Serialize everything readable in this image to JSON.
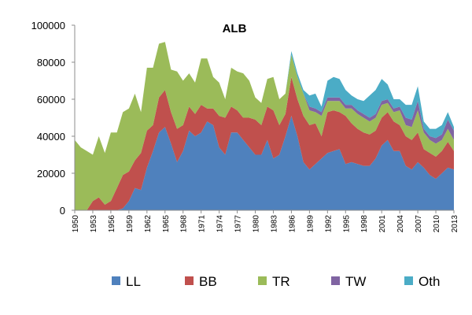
{
  "chart_data": {
    "type": "area",
    "stacked": true,
    "title": "ALB",
    "xlabel": "",
    "ylabel": "",
    "ylim": [
      0,
      100000
    ],
    "yticks": [
      0,
      20000,
      40000,
      60000,
      80000,
      100000
    ],
    "ytick_labels": [
      "0",
      "20000",
      "40000",
      "60000",
      "80000",
      "100000"
    ],
    "xticks": [
      1950,
      1953,
      1956,
      1959,
      1962,
      1965,
      1968,
      1971,
      1974,
      1977,
      1980,
      1983,
      1986,
      1989,
      1992,
      1995,
      1998,
      2001,
      2004,
      2007,
      2010,
      2013
    ],
    "xtick_labels": [
      "1950",
      "1953",
      "1956",
      "1959",
      "1962",
      "1965",
      "1968",
      "1971",
      "1974",
      "1977",
      "1980",
      "1983",
      "1986",
      "1989",
      "1992",
      "1995",
      "1998",
      "2001",
      "2004",
      "2007",
      "2010",
      "2013"
    ],
    "xlim": [
      1950,
      2013
    ],
    "grid": false,
    "legend_position": "bottom",
    "x": [
      1950,
      1951,
      1952,
      1953,
      1954,
      1955,
      1956,
      1957,
      1958,
      1959,
      1960,
      1961,
      1962,
      1963,
      1964,
      1965,
      1966,
      1967,
      1968,
      1969,
      1970,
      1971,
      1972,
      1973,
      1974,
      1975,
      1976,
      1977,
      1978,
      1979,
      1980,
      1981,
      1982,
      1983,
      1984,
      1985,
      1986,
      1987,
      1988,
      1989,
      1990,
      1991,
      1992,
      1993,
      1994,
      1995,
      1996,
      1997,
      1998,
      1999,
      2000,
      2001,
      2002,
      2003,
      2004,
      2005,
      2006,
      2007,
      2008,
      2009,
      2010,
      2011,
      2012,
      2013
    ],
    "series": [
      {
        "name": "LL",
        "color": "#4f81bd",
        "values": [
          0,
          0,
          0,
          0,
          0,
          0,
          0,
          0,
          1000,
          5000,
          12000,
          11000,
          23000,
          32000,
          42000,
          45000,
          36000,
          26000,
          32000,
          43000,
          40000,
          42000,
          48000,
          46000,
          34000,
          30000,
          42000,
          42000,
          38000,
          34000,
          30000,
          30000,
          38000,
          28000,
          30000,
          40000,
          51000,
          40000,
          26000,
          22000,
          25000,
          28000,
          31000,
          32000,
          33000,
          25000,
          26000,
          25000,
          24000,
          24000,
          28000,
          35000,
          38000,
          32000,
          32000,
          24000,
          22000,
          26000,
          23000,
          19000,
          17000,
          20000,
          23000,
          22000
        ]
      },
      {
        "name": "BB",
        "color": "#c0504d",
        "values": [
          0,
          0,
          0,
          5000,
          7000,
          3000,
          5000,
          12000,
          18000,
          16000,
          15000,
          20000,
          20000,
          14000,
          19000,
          20000,
          17000,
          18000,
          14000,
          13000,
          12000,
          15000,
          7000,
          9000,
          17000,
          20000,
          14000,
          12000,
          12000,
          16000,
          19000,
          16000,
          18000,
          26000,
          16000,
          12000,
          21000,
          20000,
          25000,
          24000,
          22000,
          12000,
          22000,
          22000,
          20000,
          26000,
          21000,
          19000,
          18000,
          17000,
          15000,
          15000,
          15000,
          16000,
          14000,
          16000,
          16000,
          16000,
          10000,
          12000,
          12000,
          12000,
          14000,
          10000
        ]
      },
      {
        "name": "TR",
        "color": "#9bbb59",
        "values": [
          38000,
          34000,
          32000,
          25000,
          33000,
          28000,
          37000,
          30000,
          34000,
          34000,
          36000,
          22000,
          34000,
          31000,
          29000,
          26000,
          23000,
          31000,
          24000,
          18000,
          17000,
          25000,
          27000,
          17000,
          18000,
          10000,
          21000,
          21000,
          24000,
          20000,
          12000,
          12000,
          15000,
          18000,
          14000,
          11000,
          12000,
          12000,
          12000,
          8000,
          6000,
          11000,
          6000,
          5000,
          6000,
          4000,
          8000,
          8000,
          8000,
          7000,
          7000,
          7000,
          5000,
          5000,
          8000,
          6000,
          7000,
          12000,
          9000,
          7000,
          7000,
          6000,
          7000,
          6000
        ]
      },
      {
        "name": "TW",
        "color": "#8064a2",
        "values": [
          0,
          0,
          0,
          0,
          0,
          0,
          0,
          0,
          0,
          0,
          0,
          0,
          0,
          0,
          0,
          0,
          0,
          0,
          0,
          0,
          0,
          0,
          0,
          0,
          0,
          0,
          0,
          0,
          0,
          0,
          0,
          0,
          0,
          0,
          0,
          0,
          0,
          0,
          0,
          2000,
          2000,
          2000,
          2000,
          2000,
          2000,
          2000,
          2000,
          2000,
          2000,
          2000,
          2000,
          2000,
          2000,
          2000,
          2000,
          4000,
          4000,
          5000,
          2000,
          2000,
          3000,
          3000,
          5000,
          5000
        ]
      },
      {
        "name": "Oth",
        "color": "#4bacc6",
        "values": [
          0,
          0,
          0,
          0,
          0,
          0,
          0,
          0,
          0,
          0,
          0,
          0,
          0,
          0,
          0,
          0,
          0,
          0,
          0,
          0,
          0,
          0,
          0,
          0,
          0,
          0,
          0,
          0,
          0,
          0,
          0,
          0,
          0,
          0,
          0,
          0,
          2000,
          2000,
          2000,
          6000,
          8000,
          3000,
          9000,
          11000,
          10000,
          8000,
          5000,
          6000,
          7000,
          12000,
          13000,
          12000,
          8000,
          5000,
          4000,
          7000,
          8000,
          8000,
          4000,
          4000,
          5000,
          5000,
          4000,
          2000
        ]
      }
    ]
  }
}
